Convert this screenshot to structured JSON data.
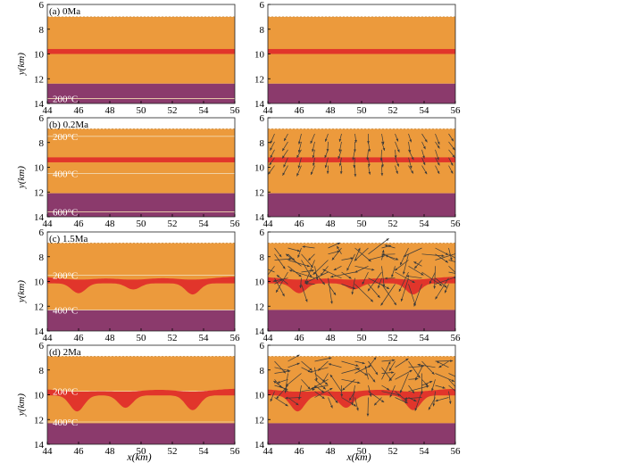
{
  "colors": {
    "orange": "#ec9a3c",
    "purple": "#8b3a6c",
    "red_layer": "#e1352b",
    "isotherm": "#f1d9b0",
    "arrow": "#3a3a3a",
    "axis": "#000000"
  },
  "figure": {
    "x_axis_label_left": "x(km)",
    "x_axis_label_right": "x(km)"
  },
  "chart_data": [
    {
      "type": "area",
      "row": 0,
      "col": 0,
      "label": "(a) 0Ma",
      "xlim": [
        44,
        56
      ],
      "ylim": [
        6,
        14
      ],
      "y_inverted": true,
      "xticks": [
        "44",
        "46",
        "48",
        "50",
        "52",
        "54",
        "56"
      ],
      "yticks": [
        "6",
        "8",
        "10",
        "12",
        "14"
      ],
      "ylabel": "y(km)",
      "orange_top": 7.0,
      "purple_top": 12.4,
      "layer": {
        "center": 9.8,
        "thickness": 0.4
      },
      "isotherms": [
        {
          "label": "200°C",
          "y": 13.6
        }
      ],
      "arrows": false
    },
    {
      "type": "area",
      "row": 0,
      "col": 1,
      "label": "",
      "xlim": [
        44,
        56
      ],
      "ylim": [
        6,
        14
      ],
      "y_inverted": true,
      "xticks": [
        "44",
        "46",
        "48",
        "50",
        "52",
        "54",
        "56"
      ],
      "yticks": [
        "6",
        "8",
        "10",
        "12",
        "14"
      ],
      "ylabel": "",
      "orange_top": 7.0,
      "purple_top": 12.4,
      "layer": {
        "center": 9.8,
        "thickness": 0.4
      },
      "isotherms": [],
      "arrows": false
    },
    {
      "type": "area",
      "row": 1,
      "col": 0,
      "label": "(b) 0.2Ma",
      "xlim": [
        44,
        56
      ],
      "ylim": [
        6,
        14
      ],
      "y_inverted": true,
      "xticks": [
        "44",
        "46",
        "48",
        "50",
        "52",
        "54",
        "56"
      ],
      "yticks": [
        "6",
        "8",
        "10",
        "12",
        "14"
      ],
      "ylabel": "y(km)",
      "orange_top": 6.9,
      "purple_top": 12.1,
      "layer": {
        "center": 9.4,
        "thickness": 0.4
      },
      "isotherms": [
        {
          "label": "200°C",
          "y": 7.5
        },
        {
          "label": "400°C",
          "y": 10.5
        },
        {
          "label": "600°C",
          "y": 13.6
        }
      ],
      "arrows": false
    },
    {
      "type": "area",
      "row": 1,
      "col": 1,
      "label": "",
      "xlim": [
        44,
        56
      ],
      "ylim": [
        6,
        14
      ],
      "y_inverted": true,
      "xticks": [
        "44",
        "46",
        "48",
        "50",
        "52",
        "54",
        "56"
      ],
      "yticks": [
        "6",
        "8",
        "10",
        "12",
        "14"
      ],
      "ylabel": "",
      "orange_top": 6.9,
      "purple_top": 12.1,
      "layer": {
        "center": 9.4,
        "thickness": 0.4
      },
      "isotherms": [],
      "arrows": true
    },
    {
      "type": "area",
      "row": 2,
      "col": 0,
      "label": "(c) 1.5Ma",
      "xlim": [
        44,
        56
      ],
      "ylim": [
        6,
        14
      ],
      "y_inverted": true,
      "xticks": [
        "44",
        "46",
        "48",
        "50",
        "52",
        "54",
        "56"
      ],
      "yticks": [
        "6",
        "8",
        "10",
        "12",
        "14"
      ],
      "ylabel": "y(km)",
      "orange_top": 6.9,
      "purple_top": 12.3,
      "layer": {
        "center": 10.0,
        "thickness": 0.3,
        "lobes": [
          {
            "x": 46.0,
            "depth": 0.8
          },
          {
            "x": 49.5,
            "depth": 0.5
          },
          {
            "x": 53.3,
            "depth": 0.9
          }
        ]
      },
      "isotherms": [
        {
          "label": "200°C",
          "y": 9.5
        },
        {
          "label": "400°C",
          "y": 12.3
        }
      ],
      "arrows": false
    },
    {
      "type": "area",
      "row": 2,
      "col": 1,
      "label": "",
      "xlim": [
        44,
        56
      ],
      "ylim": [
        6,
        14
      ],
      "y_inverted": true,
      "xticks": [
        "44",
        "46",
        "48",
        "50",
        "52",
        "54",
        "56"
      ],
      "yticks": [
        "6",
        "8",
        "10",
        "12",
        "14"
      ],
      "ylabel": "",
      "orange_top": 6.9,
      "purple_top": 12.3,
      "layer": {
        "center": 10.0,
        "thickness": 0.3,
        "lobes": [
          {
            "x": 46.0,
            "depth": 0.8
          },
          {
            "x": 49.5,
            "depth": 0.5
          },
          {
            "x": 53.3,
            "depth": 0.9
          }
        ]
      },
      "isotherms": [],
      "arrows": true
    },
    {
      "type": "area",
      "row": 3,
      "col": 0,
      "label": "(d) 2Ma",
      "xlim": [
        44,
        56
      ],
      "ylim": [
        6,
        14
      ],
      "y_inverted": true,
      "xticks": [
        "44",
        "46",
        "48",
        "50",
        "52",
        "54",
        "56"
      ],
      "yticks": [
        "6",
        "8",
        "10",
        "12",
        "14"
      ],
      "ylabel": "y(km)",
      "orange_top": 6.9,
      "purple_top": 12.3,
      "layer": {
        "center": 9.9,
        "thickness": 0.3,
        "lobes": [
          {
            "x": 45.9,
            "depth": 1.3
          },
          {
            "x": 49.0,
            "depth": 1.0
          },
          {
            "x": 53.3,
            "depth": 1.2
          }
        ]
      },
      "isotherms": [
        {
          "label": "200°C",
          "y": 9.7
        },
        {
          "label": "400°C",
          "y": 12.2
        }
      ],
      "arrows": false
    },
    {
      "type": "area",
      "row": 3,
      "col": 1,
      "label": "",
      "xlim": [
        44,
        56
      ],
      "ylim": [
        6,
        14
      ],
      "y_inverted": true,
      "xticks": [
        "44",
        "46",
        "48",
        "50",
        "52",
        "54",
        "56"
      ],
      "yticks": [
        "6",
        "8",
        "10",
        "12",
        "14"
      ],
      "ylabel": "",
      "orange_top": 6.9,
      "purple_top": 12.3,
      "layer": {
        "center": 9.9,
        "thickness": 0.3,
        "lobes": [
          {
            "x": 45.9,
            "depth": 1.3
          },
          {
            "x": 49.0,
            "depth": 1.0
          },
          {
            "x": 53.3,
            "depth": 1.2
          }
        ]
      },
      "isotherms": [],
      "arrows": true
    }
  ]
}
